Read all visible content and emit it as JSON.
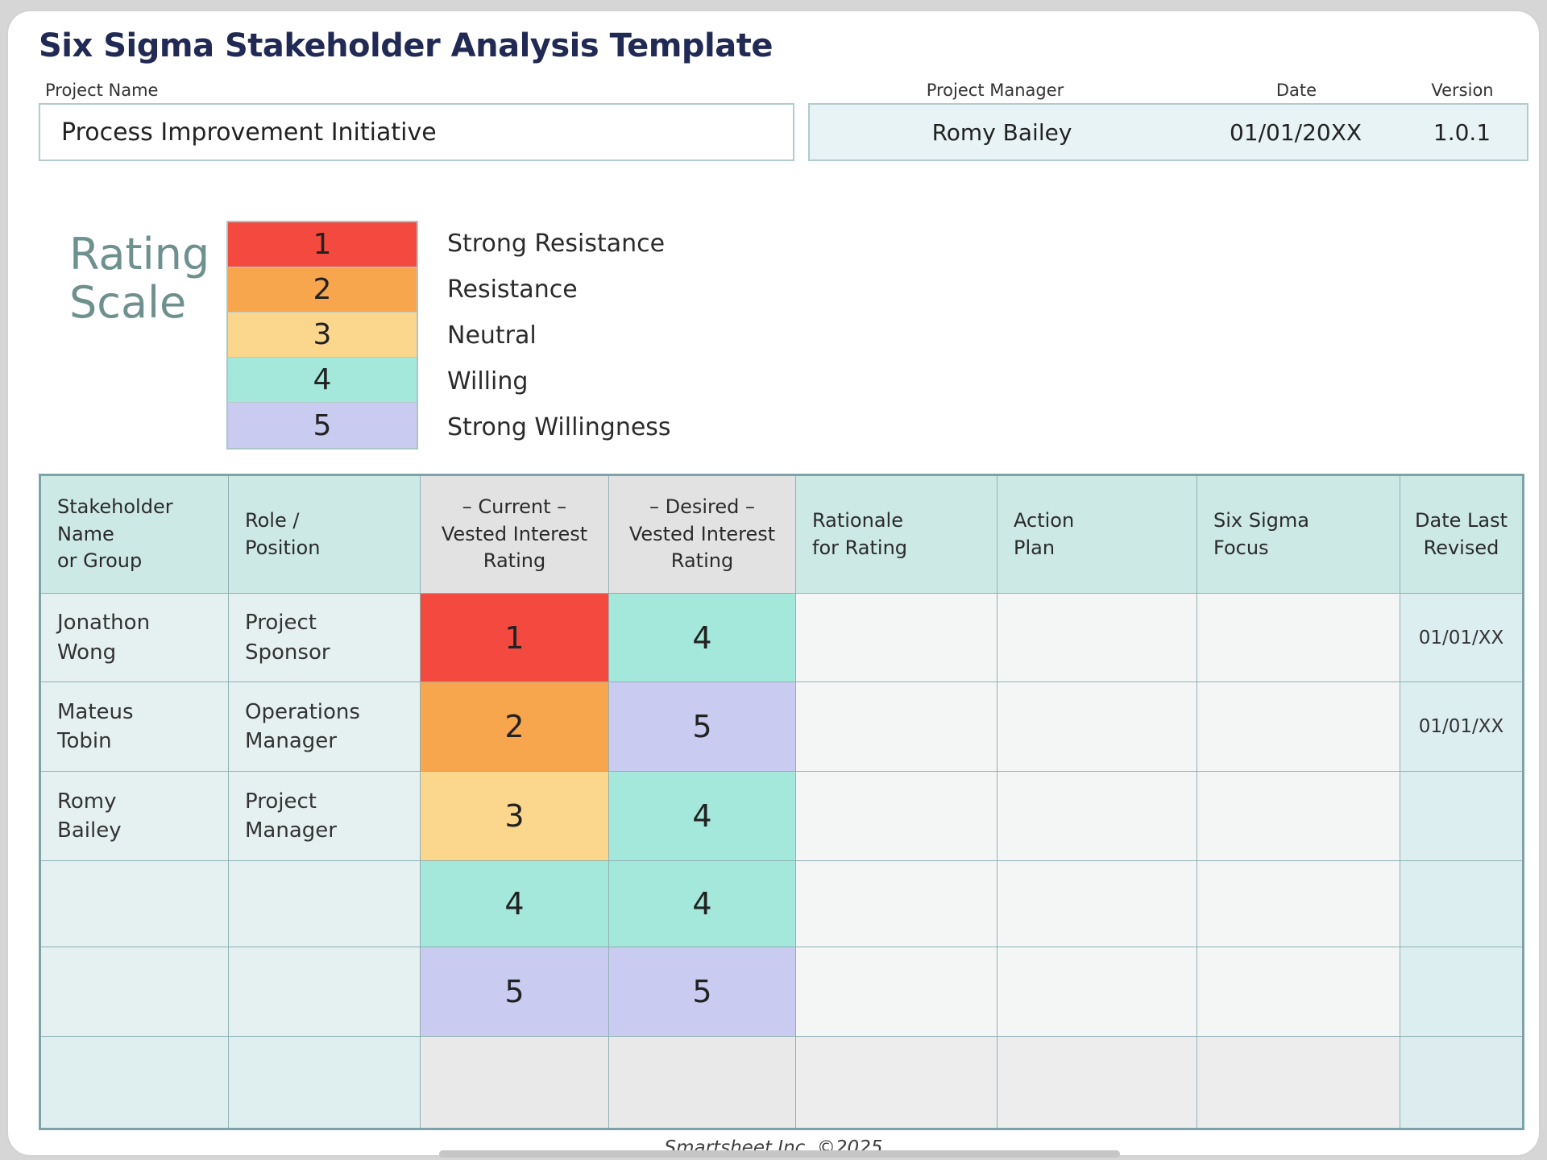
{
  "page": {
    "title": "Six Sigma Stakeholder Analysis Template",
    "footer": "Smartsheet Inc. ©2025"
  },
  "project_info": {
    "project_name": {
      "label": "Project Name",
      "value": "Process Improvement Initiative"
    },
    "project_manager": {
      "label": "Project Manager",
      "value": "Romy Bailey"
    },
    "date": {
      "label": "Date",
      "value": "01/01/20XX"
    },
    "version": {
      "label": "Version",
      "value": "1.0.1"
    }
  },
  "rating_scale": {
    "heading": "Rating Scale",
    "items": [
      {
        "value": "1",
        "label": "Strong Resistance",
        "color": "#f4493f"
      },
      {
        "value": "2",
        "label": "Resistance",
        "color": "#f7a64d"
      },
      {
        "value": "3",
        "label": "Neutral",
        "color": "#fbd78d"
      },
      {
        "value": "4",
        "label": "Willing",
        "color": "#a4e8db"
      },
      {
        "value": "5",
        "label": "Strong Willingness",
        "color": "#c9cbf0"
      }
    ]
  },
  "table": {
    "headers": [
      {
        "label": "Stakeholder\nName\nor Group"
      },
      {
        "label": "Role /\nPosition"
      },
      {
        "label": "– Current –\nVested Interest\nRating"
      },
      {
        "label": "– Desired –\nVested Interest\nRating"
      },
      {
        "label": "Rationale\nfor Rating"
      },
      {
        "label": "Action\nPlan"
      },
      {
        "label": "Six Sigma\nFocus"
      },
      {
        "label": "Date Last\nRevised"
      }
    ],
    "rows": [
      {
        "name": "Jonathon\nWong",
        "role": "Project\nSponsor",
        "current": "1",
        "current_color": "#f4493f",
        "desired": "4",
        "desired_color": "#a4e8db",
        "rationale": "",
        "action_plan": "",
        "six_sigma_focus": "",
        "date_last_revised": "01/01/XX"
      },
      {
        "name": "Mateus\nTobin",
        "role": "Operations\nManager",
        "current": "2",
        "current_color": "#f7a64d",
        "desired": "5",
        "desired_color": "#c9cbf0",
        "rationale": "",
        "action_plan": "",
        "six_sigma_focus": "",
        "date_last_revised": "01/01/XX"
      },
      {
        "name": "Romy\nBailey",
        "role": "Project\nManager",
        "current": "3",
        "current_color": "#fbd78d",
        "desired": "4",
        "desired_color": "#a4e8db",
        "rationale": "",
        "action_plan": "",
        "six_sigma_focus": "",
        "date_last_revised": ""
      },
      {
        "name": "",
        "role": "",
        "current": "4",
        "current_color": "#a4e8db",
        "desired": "4",
        "desired_color": "#a4e8db",
        "rationale": "",
        "action_plan": "",
        "six_sigma_focus": "",
        "date_last_revised": ""
      },
      {
        "name": "",
        "role": "",
        "current": "5",
        "current_color": "#c9cbf0",
        "desired": "5",
        "desired_color": "#c9cbf0",
        "rationale": "",
        "action_plan": "",
        "six_sigma_focus": "",
        "date_last_revised": ""
      },
      {
        "name": "",
        "role": "",
        "current": "",
        "current_color": "",
        "desired": "",
        "desired_color": "",
        "rationale": "",
        "action_plan": "",
        "six_sigma_focus": "",
        "date_last_revised": ""
      }
    ]
  },
  "colors": {
    "title": "#212a54",
    "rating_heading": "#6e908e",
    "table_header_teal": "#cce9e5",
    "table_header_gray": "#e2e2e2",
    "table_border": "#8fb1b5"
  }
}
